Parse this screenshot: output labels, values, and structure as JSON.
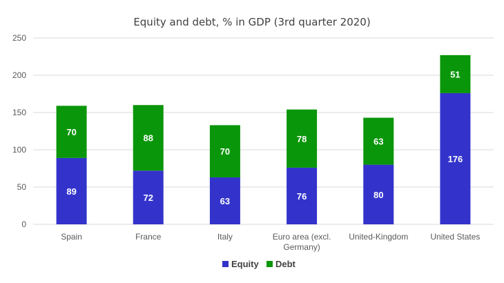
{
  "chart_data": {
    "type": "bar",
    "stacked": true,
    "title": "Equity and debt, % in GDP (3rd quarter 2020)",
    "xlabel": "",
    "ylabel": "",
    "ylim": [
      0,
      250
    ],
    "yticks": [
      0,
      50,
      100,
      150,
      200,
      250
    ],
    "grid": true,
    "legend_position": "bottom",
    "categories": [
      [
        "Spain"
      ],
      [
        "France"
      ],
      [
        "Italy"
      ],
      [
        "Euro area (excl.",
        "Germany)"
      ],
      [
        "United-Kingdom"
      ],
      [
        "United States"
      ]
    ],
    "series": [
      {
        "name": "Equity",
        "color": "#3333cc",
        "values": [
          89,
          72,
          63,
          76,
          80,
          176
        ]
      },
      {
        "name": "Debt",
        "color": "#0a960a",
        "values": [
          70,
          88,
          70,
          78,
          63,
          51
        ]
      }
    ]
  }
}
